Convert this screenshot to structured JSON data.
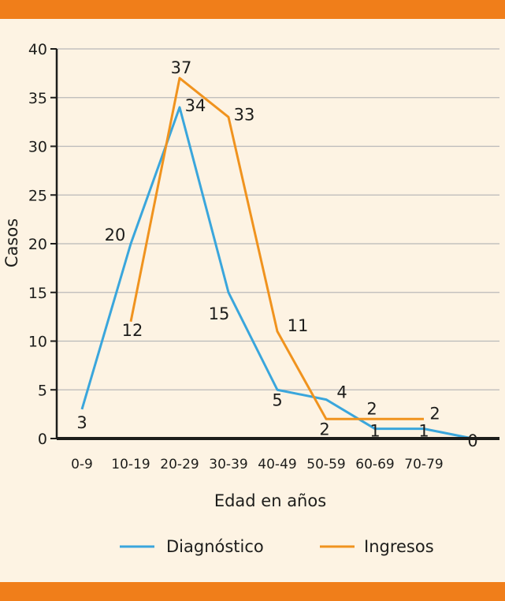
{
  "colors": {
    "diagnostico": "#3aa6dc",
    "ingresos": "#f0931e",
    "band": "#f07e1a",
    "background": "#fdf3e3"
  },
  "chart_data": {
    "type": "line",
    "xlabel": "Edad en años",
    "ylabel": "Casos",
    "ylim": [
      0,
      40
    ],
    "yticks": [
      0,
      5,
      10,
      15,
      20,
      25,
      30,
      35,
      40
    ],
    "categories": [
      "0-9",
      "10-19",
      "20-29",
      "30-39",
      "40-49",
      "50-59",
      "60-69",
      "70-79"
    ],
    "grid": true,
    "legend": "bottom",
    "series": [
      {
        "name": "Diagnóstico",
        "key": "diagnostico",
        "x": [
          0,
          1,
          2,
          3,
          4,
          5,
          6,
          7,
          8
        ],
        "values": [
          3,
          20,
          34,
          15,
          5,
          4,
          1,
          1,
          0
        ]
      },
      {
        "name": "Ingresos",
        "key": "ingresos",
        "x": [
          1,
          2,
          3,
          4,
          5,
          6,
          7
        ],
        "values": [
          12,
          37,
          33,
          11,
          2,
          2,
          2
        ]
      }
    ]
  }
}
